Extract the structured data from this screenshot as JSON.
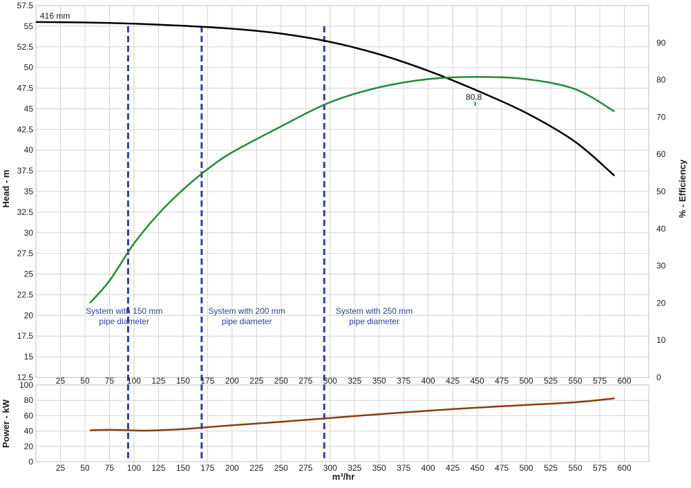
{
  "chart_data": {
    "type": "line",
    "x_unit_label": "m³/hr",
    "xlim": [
      0,
      625
    ],
    "x_ticks": [
      25,
      50,
      75,
      100,
      125,
      150,
      175,
      200,
      225,
      250,
      275,
      300,
      325,
      350,
      375,
      400,
      425,
      450,
      475,
      500,
      525,
      550,
      575,
      600
    ],
    "head_panel": {
      "ylabel_left": "Head - m",
      "ylim_left": [
        12.5,
        57.5
      ],
      "yticks_left": [
        12.5,
        15,
        17.5,
        20,
        22.5,
        25,
        27.5,
        30,
        32.5,
        35,
        37.5,
        40,
        42.5,
        45,
        47.5,
        50,
        52.5,
        55,
        57.5
      ],
      "ylabel_right": "% - Efficiency",
      "ylim_right": [
        0,
        100
      ],
      "yticks_right": [
        0,
        10,
        20,
        30,
        40,
        50,
        60,
        70,
        80,
        90
      ],
      "series": [
        {
          "name": "416 mm",
          "axis": "left",
          "color": "#000000",
          "points": [
            [
              0,
              55.5
            ],
            [
              50,
              55.45
            ],
            [
              100,
              55.3
            ],
            [
              150,
              55.05
            ],
            [
              200,
              54.7
            ],
            [
              250,
              54.1
            ],
            [
              300,
              53.1
            ],
            [
              350,
              51.6
            ],
            [
              400,
              49.6
            ],
            [
              450,
              47.2
            ],
            [
              500,
              44.5
            ],
            [
              550,
              41.0
            ],
            [
              590,
              36.9
            ]
          ]
        },
        {
          "name": "",
          "axis": "right",
          "color": "#1f8a3c",
          "points": [
            [
              55,
              20.0
            ],
            [
              75,
              26.0
            ],
            [
              100,
              36.0
            ],
            [
              125,
              44.0
            ],
            [
              150,
              50.5
            ],
            [
              175,
              56.0
            ],
            [
              200,
              60.5
            ],
            [
              250,
              67.5
            ],
            [
              300,
              74.0
            ],
            [
              350,
              78.0
            ],
            [
              400,
              80.2
            ],
            [
              450,
              80.8
            ],
            [
              500,
              80.2
            ],
            [
              550,
              77.5
            ],
            [
              590,
              71.5
            ]
          ]
        }
      ],
      "annotations": [
        {
          "text": "80.8",
          "x": 448,
          "y_right": 80.8
        }
      ]
    },
    "power_panel": {
      "ylabel": "Power - kW",
      "ylim": [
        0,
        100
      ],
      "yticks": [
        0,
        20,
        40,
        60,
        80,
        100
      ],
      "series": [
        {
          "name": "",
          "color": "#8b3a12",
          "points": [
            [
              55,
              41
            ],
            [
              75,
              41.5
            ],
            [
              95,
              41
            ],
            [
              110,
              40.5
            ],
            [
              125,
              41
            ],
            [
              150,
              42.5
            ],
            [
              175,
              45
            ],
            [
              200,
              47.5
            ],
            [
              250,
              52
            ],
            [
              300,
              57
            ],
            [
              350,
              62
            ],
            [
              400,
              66.5
            ],
            [
              450,
              70.5
            ],
            [
              500,
              74
            ],
            [
              550,
              77.5
            ],
            [
              590,
              82.5
            ]
          ]
        }
      ]
    },
    "system_lines": [
      {
        "x": 94,
        "label_line1": "System with 150 mm",
        "label_line2": "pipe diameter",
        "label_x": 90
      },
      {
        "x": 169,
        "label_line1": "System with 200 mm",
        "label_line2": "pipe diameter",
        "label_x": 215
      },
      {
        "x": 294,
        "label_line1": "System with 250 mm",
        "label_line2": "pipe diameter",
        "label_x": 345
      }
    ]
  }
}
